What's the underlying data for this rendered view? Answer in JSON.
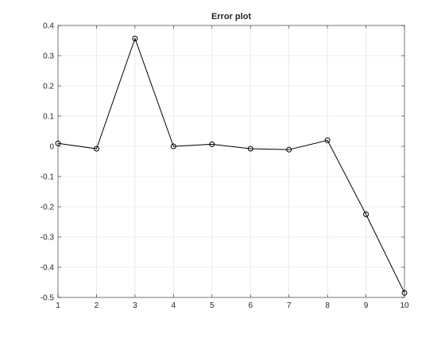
{
  "chart_data": {
    "type": "line",
    "title": "Error plot",
    "xlabel": "",
    "ylabel": "",
    "x": [
      1,
      2,
      3,
      4,
      5,
      6,
      7,
      8,
      9,
      10
    ],
    "series": [
      {
        "values": [
          0.01,
          -0.008,
          0.357,
          0.0,
          0.007,
          -0.008,
          -0.011,
          0.02,
          -0.225,
          -0.485
        ],
        "color": "#000000",
        "marker": "circle"
      }
    ],
    "xlim": [
      1,
      10
    ],
    "ylim": [
      -0.5,
      0.4
    ],
    "xticks": [
      "1",
      "2",
      "3",
      "4",
      "5",
      "6",
      "7",
      "8",
      "9",
      "10"
    ],
    "yticks": [
      "-0.5",
      "-0.4",
      "-0.3",
      "-0.2",
      "-0.1",
      "0",
      "0.1",
      "0.2",
      "0.3",
      "0.4"
    ],
    "grid": true,
    "box": true
  }
}
